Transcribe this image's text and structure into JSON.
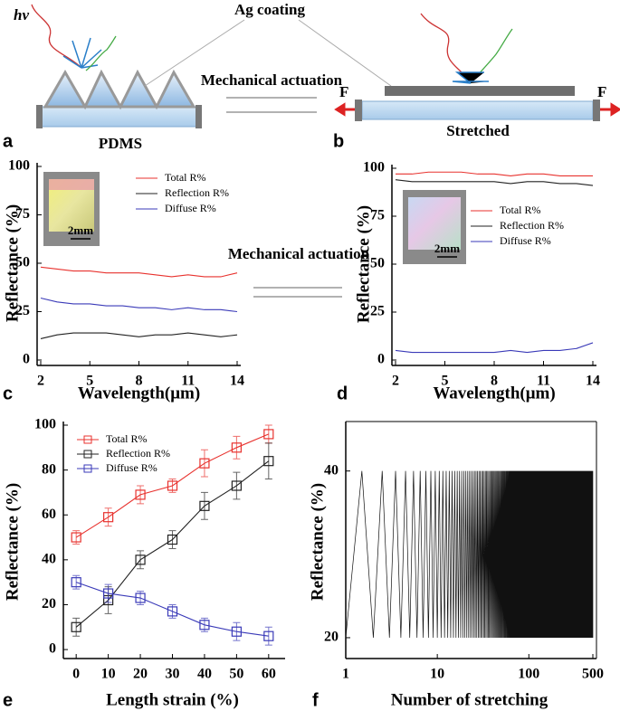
{
  "diagram": {
    "hv": "hν",
    "ag_coating": "Ag coating",
    "actuation": "Mechanical actuation",
    "left_label": "PDMS",
    "right_label": "Stretched",
    "force_left": "F",
    "force_right": "F",
    "panel_a": "a",
    "panel_b": "b"
  },
  "actuation_label": "Mechanical actuation",
  "chart_data": [
    {
      "type": "line",
      "panel": "c",
      "xlabel": "Wavelength(μm)",
      "ylabel": "Reflectance (%)",
      "inset_label": "2mm",
      "x": [
        2,
        3,
        4,
        5,
        6,
        7,
        8,
        9,
        10,
        11,
        12,
        13,
        14
      ],
      "xlim": [
        2,
        14
      ],
      "xticks": [
        2,
        5,
        8,
        11,
        14
      ],
      "ylim": [
        0,
        100
      ],
      "yticks": [
        0,
        25,
        50,
        75,
        100
      ],
      "series": [
        {
          "name": "Total R%",
          "color": "#e8322e",
          "values": [
            48,
            47,
            46,
            46,
            45,
            45,
            45,
            44,
            43,
            44,
            43,
            43,
            45
          ]
        },
        {
          "name": "Reflection R%",
          "color": "#222222",
          "values": [
            11,
            13,
            14,
            14,
            14,
            13,
            12,
            13,
            13,
            14,
            13,
            12,
            13
          ]
        },
        {
          "name": "Diffuse R%",
          "color": "#3a3ab8",
          "values": [
            32,
            30,
            29,
            29,
            28,
            28,
            27,
            27,
            26,
            27,
            26,
            26,
            25
          ]
        }
      ]
    },
    {
      "type": "line",
      "panel": "d",
      "xlabel": "Wavelength(μm)",
      "ylabel": "Reflectance (%)",
      "inset_label": "2mm",
      "x": [
        2,
        3,
        4,
        5,
        6,
        7,
        8,
        9,
        10,
        11,
        12,
        13,
        14
      ],
      "xlim": [
        2,
        14
      ],
      "xticks": [
        2,
        5,
        8,
        11,
        14
      ],
      "ylim": [
        0,
        100
      ],
      "yticks": [
        0,
        25,
        50,
        75,
        100
      ],
      "series": [
        {
          "name": "Total R%",
          "color": "#e8322e",
          "values": [
            97,
            97,
            98,
            98,
            98,
            97,
            97,
            96,
            97,
            97,
            96,
            96,
            96
          ]
        },
        {
          "name": "Reflection R%",
          "color": "#222222",
          "values": [
            94,
            93,
            93,
            93,
            93,
            93,
            93,
            92,
            93,
            93,
            92,
            92,
            91
          ]
        },
        {
          "name": "Diffuse R%",
          "color": "#3a3ab8",
          "values": [
            5,
            4,
            4,
            4,
            4,
            4,
            4,
            5,
            4,
            5,
            5,
            6,
            9
          ]
        }
      ]
    },
    {
      "type": "errorline",
      "panel": "e",
      "xlabel": "Length strain (%)",
      "ylabel": "Reflectance (%)",
      "x": [
        0,
        10,
        20,
        30,
        40,
        50,
        60
      ],
      "xlim": [
        -4,
        64
      ],
      "xticks": [
        0,
        10,
        20,
        30,
        40,
        50,
        60
      ],
      "ylim": [
        -4,
        100
      ],
      "yticks": [
        0,
        20,
        40,
        60,
        80,
        100
      ],
      "series": [
        {
          "name": "Total R%",
          "color": "#e8322e",
          "values": [
            50,
            59,
            69,
            73,
            83,
            90,
            96
          ],
          "errors": [
            3,
            4,
            4,
            3,
            6,
            5,
            4
          ]
        },
        {
          "name": "Reflection R%",
          "color": "#222222",
          "values": [
            10,
            22,
            40,
            49,
            64,
            73,
            84
          ],
          "errors": [
            4,
            6,
            4,
            4,
            6,
            6,
            8
          ]
        },
        {
          "name": "Diffuse R%",
          "color": "#3a3ab8",
          "values": [
            30,
            25,
            23,
            17,
            11,
            8,
            6
          ],
          "errors": [
            3,
            4,
            3,
            3,
            3,
            4,
            4
          ]
        }
      ]
    },
    {
      "type": "cycles",
      "panel": "f",
      "xlabel": "Number of stretching",
      "ylabel": "Reflectance (%)",
      "log_x": true,
      "xlim": [
        1,
        500
      ],
      "xticks": [
        1,
        10,
        100,
        500
      ],
      "ylim": [
        17.5,
        45.5
      ],
      "yticks": [
        20,
        40
      ],
      "min_value": 20,
      "max_value": 40,
      "color": "#111111"
    }
  ]
}
